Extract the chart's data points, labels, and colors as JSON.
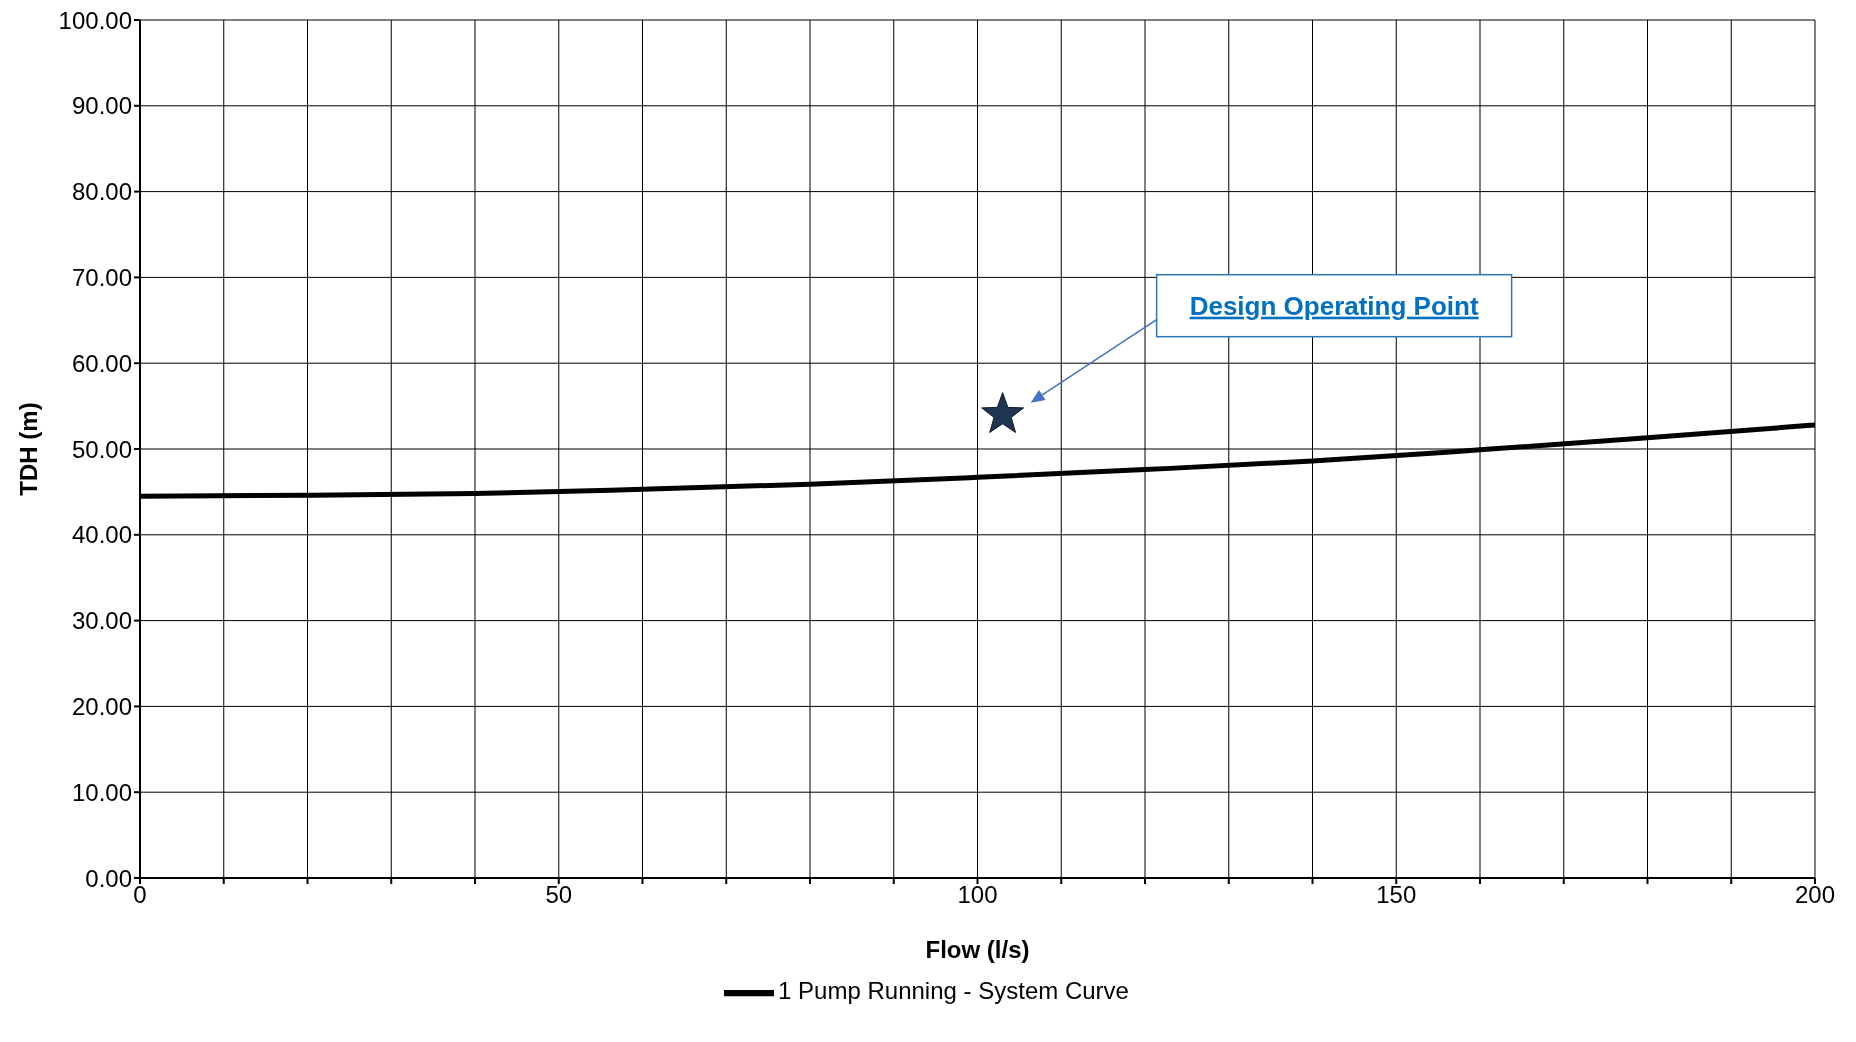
{
  "chart_data": {
    "type": "line",
    "xlabel": "Flow (l/s)",
    "ylabel": "TDH (m)",
    "xlim": [
      0,
      200
    ],
    "xticks": [
      0,
      {
        "value": 10,
        "label": null
      },
      {
        "value": 20,
        "label": null
      },
      {
        "value": 30,
        "label": null
      },
      {
        "value": 40,
        "label": null
      },
      50,
      {
        "value": 60,
        "label": null
      },
      {
        "value": 70,
        "label": null
      },
      {
        "value": 80,
        "label": null
      },
      {
        "value": 90,
        "label": null
      },
      100,
      {
        "value": 110,
        "label": null
      },
      {
        "value": 120,
        "label": null
      },
      {
        "value": 130,
        "label": null
      },
      {
        "value": 140,
        "label": null
      },
      150,
      {
        "value": 160,
        "label": null
      },
      {
        "value": 170,
        "label": null
      },
      {
        "value": 180,
        "label": null
      },
      {
        "value": 190,
        "label": null
      },
      200
    ],
    "ylim": [
      0,
      100
    ],
    "yticks": [
      {
        "value": 0,
        "label": "0.00"
      },
      {
        "value": 10,
        "label": "10.00"
      },
      {
        "value": 20,
        "label": "20.00"
      },
      {
        "value": 30,
        "label": "30.00"
      },
      {
        "value": 40,
        "label": "40.00"
      },
      {
        "value": 50,
        "label": "50.00"
      },
      {
        "value": 60,
        "label": "60.00"
      },
      {
        "value": 70,
        "label": "70.00"
      },
      {
        "value": 80,
        "label": "80.00"
      },
      {
        "value": 90,
        "label": "90.00"
      },
      {
        "value": 100,
        "label": "100.00"
      }
    ],
    "grid": true,
    "legend": "bottom",
    "series": [
      {
        "name": "1 Pump Running - System Curve",
        "color": "#000000",
        "marker": "none",
        "x": [
          0,
          20,
          40,
          60,
          80,
          100,
          120,
          140,
          160,
          180,
          200
        ],
        "values": [
          44.5,
          44.6,
          44.8,
          45.3,
          45.9,
          46.7,
          47.6,
          48.6,
          49.9,
          51.3,
          52.8
        ]
      },
      {
        "type": "scatter",
        "color": "#1f3450",
        "marker": "star",
        "x": [
          103
        ],
        "values": [
          54
        ]
      }
    ],
    "annotations": [
      "Design Operating Point"
    ]
  }
}
